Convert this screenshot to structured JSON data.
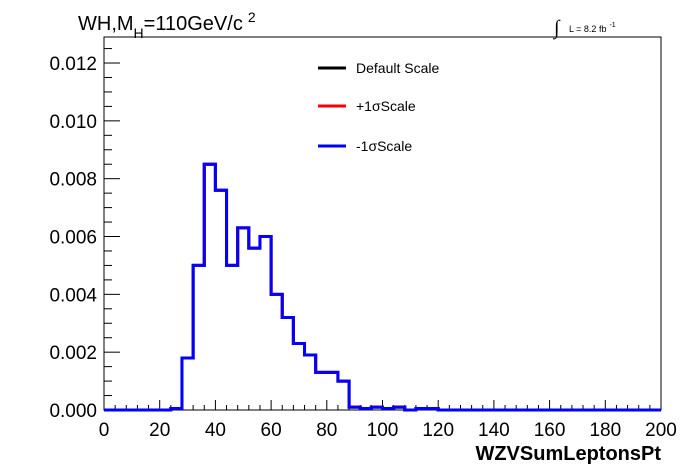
{
  "chart_data": {
    "type": "line",
    "title": {
      "main": "WH,M",
      "subscript": "H",
      "rest": "=110GeV/c",
      "superscript": "2"
    },
    "luminosity": {
      "integral_sign": "∫",
      "text": "L = 8.2 fb",
      "superscript": "-1"
    },
    "xlabel": "WZVSumLeptonsPt",
    "ylabel": "",
    "xlim": [
      0,
      200
    ],
    "ylim": [
      0,
      0.0129
    ],
    "x_ticks": [
      "0",
      "20",
      "40",
      "60",
      "80",
      "100",
      "120",
      "140",
      "160",
      "180",
      "200"
    ],
    "y_ticks": [
      "0.000",
      "0.002",
      "0.004",
      "0.006",
      "0.008",
      "0.010",
      "0.012"
    ],
    "bin_edges": [
      0,
      4,
      8,
      12,
      16,
      20,
      24,
      28,
      32,
      36,
      40,
      44,
      48,
      52,
      56,
      60,
      64,
      68,
      72,
      76,
      80,
      84,
      88,
      92,
      96,
      100,
      104,
      108,
      112,
      116,
      120,
      124,
      128,
      132,
      136,
      140,
      144,
      148,
      152,
      156,
      160,
      164,
      168,
      172,
      176,
      180,
      184,
      188,
      192,
      196,
      200
    ],
    "grid": false,
    "legend_position": "top-center",
    "series": [
      {
        "name": "Default Scale",
        "color": "#000000",
        "values": [
          0,
          0,
          0,
          0,
          0,
          0,
          5e-05,
          0.0018,
          0.005,
          0.0085,
          0.0076,
          0.005,
          0.0063,
          0.0056,
          0.006,
          0.004,
          0.0032,
          0.0023,
          0.0019,
          0.0013,
          0.0013,
          0.001,
          0.0001,
          5e-05,
          0.0001,
          5e-05,
          0.0001,
          0,
          5e-05,
          5e-05,
          0,
          0,
          0,
          0,
          0,
          0,
          0,
          0,
          0,
          0,
          0,
          0,
          0,
          0,
          0,
          0,
          0,
          0,
          0,
          0
        ]
      },
      {
        "name": "+1σScale",
        "color": "#ff0000",
        "values": [
          0,
          0,
          0,
          0,
          0,
          0,
          5e-05,
          0.0018,
          0.005,
          0.0085,
          0.0076,
          0.005,
          0.0063,
          0.0056,
          0.006,
          0.004,
          0.0032,
          0.0023,
          0.0019,
          0.0013,
          0.0013,
          0.001,
          0.0001,
          5e-05,
          0.0001,
          5e-05,
          0.0001,
          0,
          5e-05,
          5e-05,
          0,
          0,
          0,
          0,
          0,
          0,
          0,
          0,
          0,
          0,
          0,
          0,
          0,
          0,
          0,
          0,
          0,
          0,
          0,
          0
        ]
      },
      {
        "name": "-1σScale",
        "color": "#0000ff",
        "values": [
          0,
          0,
          0,
          0,
          0,
          0,
          5e-05,
          0.0018,
          0.005,
          0.0085,
          0.0076,
          0.005,
          0.0063,
          0.0056,
          0.006,
          0.004,
          0.0032,
          0.0023,
          0.0019,
          0.0013,
          0.0013,
          0.001,
          0.0001,
          5e-05,
          0.0001,
          5e-05,
          0.0001,
          0,
          5e-05,
          5e-05,
          0,
          0,
          0,
          0,
          0,
          0,
          0,
          0,
          0,
          0,
          0,
          0,
          0,
          0,
          0,
          0,
          0,
          0,
          0,
          0
        ]
      }
    ]
  }
}
